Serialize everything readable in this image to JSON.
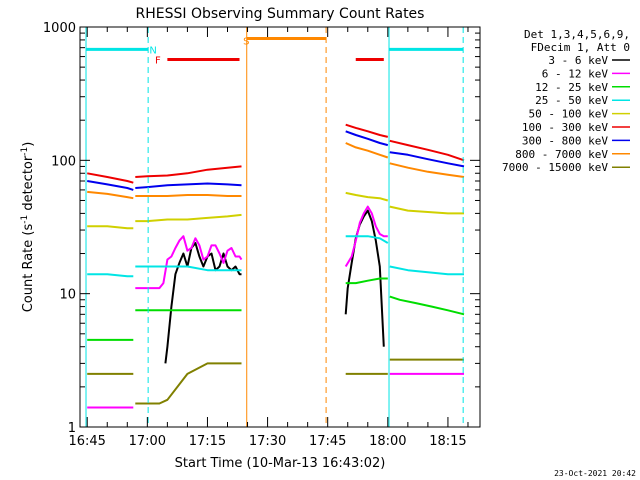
{
  "chart_data": {
    "type": "line",
    "title": "RHESSI Observing Summary Count Rates",
    "xlabel": "Start Time (10-Mar-13 16:43:02)",
    "ylabel_parts": [
      "Count Rate (s",
      "-1",
      " detector",
      "-1",
      ")"
    ],
    "y_scale": "log",
    "ylim": [
      1,
      1000
    ],
    "xlim_min": [
      0,
      96
    ],
    "x_ticks": [
      {
        "t": 0,
        "label": "16:45"
      },
      {
        "t": 15,
        "label": "17:00"
      },
      {
        "t": 30,
        "label": "17:15"
      },
      {
        "t": 45,
        "label": "17:30"
      },
      {
        "t": 60,
        "label": "17:45"
      },
      {
        "t": 75,
        "label": "18:00"
      },
      {
        "t": 90,
        "label": "18:15"
      }
    ],
    "y_ticks": [
      {
        "v": 1,
        "label": "1"
      },
      {
        "v": 10,
        "label": "10"
      },
      {
        "v": 100,
        "label": "100"
      },
      {
        "v": 1000,
        "label": "1000"
      }
    ],
    "legend_placement": "right",
    "legend_header": [
      "Det 1,3,4,5,6,9,",
      "FDecim 1, Att 0"
    ],
    "series": [
      {
        "name": "3 - 6 keV",
        "color": "#000000",
        "segments": [
          {
            "t": [
              19.5,
              20,
              21,
              22,
              23,
              24,
              25,
              26,
              27,
              28,
              29,
              30,
              31,
              32,
              33,
              34,
              35,
              36,
              37,
              38,
              38.5
            ],
            "v": [
              3,
              4,
              8,
              14,
              17,
              20,
              16,
              22,
              24,
              19,
              16,
              19,
              20,
              15,
              16,
              20,
              16,
              15,
              16,
              14,
              14
            ]
          },
          {
            "t": [
              64.5,
              65,
              66,
              67,
              68,
              69,
              70,
              71,
              72,
              73,
              74
            ],
            "v": [
              7,
              11,
              17,
              26,
              33,
              38,
              42,
              35,
              25,
              16,
              4
            ]
          }
        ]
      },
      {
        "name": "6 - 12 keV",
        "color": "#ff00ff",
        "segments": [
          {
            "t": [
              0,
              5,
              10,
              11.5
            ],
            "v": [
              1.4,
              1.4,
              1.4,
              1.4
            ]
          },
          {
            "t": [
              12,
              15,
              17,
              18,
              19,
              20,
              21,
              22,
              23,
              24,
              25,
              26,
              27,
              28,
              29,
              30,
              31,
              32,
              33,
              34,
              35,
              36,
              37,
              38,
              38.5
            ],
            "v": [
              11,
              11,
              11,
              11,
              12,
              18,
              19,
              22,
              25,
              27,
              21,
              22,
              26,
              23,
              18,
              19,
              23,
              23,
              20,
              17,
              21,
              22,
              19,
              19,
              18
            ]
          },
          {
            "t": [
              64.5,
              66,
              67,
              68,
              69,
              70,
              71,
              72,
              73,
              74,
              75
            ],
            "v": [
              16,
              19,
              25,
              34,
              40,
              45,
              40,
              32,
              28,
              27,
              27
            ]
          },
          {
            "t": [
              75.5,
              80,
              85,
              90,
              94
            ],
            "v": [
              2.5,
              2.5,
              2.5,
              2.5,
              2.5
            ]
          }
        ]
      },
      {
        "name": "12 - 25 keV",
        "color": "#00dd00",
        "segments": [
          {
            "t": [
              0,
              5,
              10,
              11.5
            ],
            "v": [
              4.5,
              4.5,
              4.5,
              4.5
            ]
          },
          {
            "t": [
              12,
              15,
              18,
              25,
              30,
              35,
              38.5
            ],
            "v": [
              7.5,
              7.5,
              7.5,
              7.5,
              7.5,
              7.5,
              7.5
            ]
          },
          {
            "t": [
              64.5,
              67,
              70,
              73,
              75
            ],
            "v": [
              12,
              12,
              12.5,
              13,
              13
            ]
          },
          {
            "t": [
              75.5,
              78,
              82,
              86,
              90,
              94
            ],
            "v": [
              9.5,
              9,
              8.5,
              8,
              7.5,
              7
            ]
          }
        ]
      },
      {
        "name": "25 - 50 keV",
        "color": "#00e5e5",
        "segments": [
          {
            "t": [
              0,
              5,
              10,
              11.5
            ],
            "v": [
              14,
              14,
              13.5,
              13.5
            ]
          },
          {
            "t": [
              12,
              15,
              18,
              25,
              30,
              35,
              38.5
            ],
            "v": [
              16,
              16,
              16,
              16,
              15,
              15,
              15
            ]
          },
          {
            "t": [
              64.5,
              67,
              70,
              73,
              75
            ],
            "v": [
              27,
              27,
              27,
              26,
              24
            ]
          },
          {
            "t": [
              75.5,
              80,
              85,
              90,
              94
            ],
            "v": [
              16,
              15,
              14.5,
              14,
              14
            ]
          }
        ]
      },
      {
        "name": "50 - 100 keV",
        "color": "#d0d000",
        "segments": [
          {
            "t": [
              0,
              5,
              10,
              11.5
            ],
            "v": [
              32,
              32,
              31,
              31
            ]
          },
          {
            "t": [
              12,
              15,
              20,
              25,
              30,
              35,
              38.5
            ],
            "v": [
              35,
              35,
              36,
              36,
              37,
              38,
              39
            ]
          },
          {
            "t": [
              64.5,
              67,
              70,
              73,
              75
            ],
            "v": [
              57,
              55,
              53,
              52,
              50
            ]
          },
          {
            "t": [
              75.5,
              80,
              85,
              90,
              94
            ],
            "v": [
              45,
              42,
              41,
              40,
              40
            ]
          }
        ]
      },
      {
        "name": "100 - 300 keV",
        "color": "#ee0000",
        "segments": [
          {
            "t": [
              0,
              5,
              10,
              11.5
            ],
            "v": [
              80,
              75,
              70,
              68
            ]
          },
          {
            "t": [
              12,
              15,
              20,
              25,
              30,
              35,
              38.5
            ],
            "v": [
              75,
              76,
              77,
              80,
              85,
              88,
              90
            ]
          },
          {
            "t": [
              64.5,
              67,
              70,
              73,
              75
            ],
            "v": [
              185,
              175,
              165,
              155,
              150
            ]
          },
          {
            "t": [
              75.5,
              80,
              85,
              90,
              94
            ],
            "v": [
              140,
              130,
              120,
              110,
              100
            ]
          }
        ]
      },
      {
        "name": "300 - 800 keV",
        "color": "#0000ee",
        "segments": [
          {
            "t": [
              0,
              5,
              10,
              11.5
            ],
            "v": [
              70,
              66,
              62,
              60
            ]
          },
          {
            "t": [
              12,
              15,
              20,
              25,
              30,
              35,
              38.5
            ],
            "v": [
              62,
              63,
              65,
              66,
              67,
              66,
              65
            ]
          },
          {
            "t": [
              64.5,
              67,
              70,
              73,
              75
            ],
            "v": [
              165,
              155,
              145,
              135,
              130
            ]
          },
          {
            "t": [
              75.5,
              80,
              85,
              90,
              94
            ],
            "v": [
              115,
              110,
              102,
              95,
              90
            ]
          }
        ]
      },
      {
        "name": "800 - 7000 keV",
        "color": "#ff8800",
        "segments": [
          {
            "t": [
              0,
              5,
              10,
              11.5
            ],
            "v": [
              58,
              56,
              53,
              52
            ]
          },
          {
            "t": [
              12,
              15,
              20,
              25,
              30,
              35,
              38.5
            ],
            "v": [
              54,
              54,
              54,
              55,
              55,
              54,
              54
            ]
          },
          {
            "t": [
              64.5,
              67,
              70,
              73,
              75
            ],
            "v": [
              135,
              125,
              118,
              110,
              105
            ]
          },
          {
            "t": [
              75.5,
              80,
              85,
              90,
              94
            ],
            "v": [
              95,
              88,
              82,
              78,
              75
            ]
          }
        ]
      },
      {
        "name": "7000 - 15000 keV",
        "color": "#808000",
        "segments": [
          {
            "t": [
              0,
              5,
              10,
              11.5
            ],
            "v": [
              2.5,
              2.5,
              2.5,
              2.5
            ]
          },
          {
            "t": [
              12,
              15,
              18,
              20,
              25,
              30,
              35,
              38.5
            ],
            "v": [
              1.5,
              1.5,
              1.5,
              1.6,
              2.5,
              3,
              3,
              3
            ]
          },
          {
            "t": [
              64.5,
              67,
              70,
              73,
              75
            ],
            "v": [
              2.5,
              2.5,
              2.5,
              2.5,
              2.5
            ]
          },
          {
            "t": [
              75.5,
              80,
              85,
              90,
              94
            ],
            "v": [
              3.2,
              3.2,
              3.2,
              3.2,
              3.2
            ]
          }
        ]
      }
    ],
    "annotations": {
      "vertical_lines": [
        {
          "t": -0.3,
          "color": "#00e5e5",
          "dashed": false
        },
        {
          "t": 15.2,
          "color": "#00e5e5",
          "dashed": true
        },
        {
          "t": 39.8,
          "color": "#ff8800",
          "dashed": false
        },
        {
          "t": 59.6,
          "color": "#ff8800",
          "dashed": true
        },
        {
          "t": 75.3,
          "color": "#00e5e5",
          "dashed": false
        },
        {
          "t": 93.8,
          "color": "#00e5e5",
          "dashed": true
        }
      ],
      "bars": [
        {
          "t0": -0.3,
          "t1": 15.2,
          "v": 680,
          "color": "#00e5e5"
        },
        {
          "t0": 75.3,
          "t1": 93.8,
          "v": 680,
          "color": "#00e5e5"
        },
        {
          "t0": 39.8,
          "t1": 59.6,
          "v": 820,
          "color": "#ff8800"
        },
        {
          "t0": 20,
          "t1": 38,
          "v": 570,
          "color": "#ee0000"
        },
        {
          "t0": 67,
          "t1": 74,
          "v": 570,
          "color": "#ee0000"
        }
      ],
      "letters": [
        {
          "text": "N",
          "t": 15.5,
          "v": 680,
          "color": "#00e5e5"
        },
        {
          "text": "F",
          "t": 16.9,
          "v": 570,
          "color": "#ee0000"
        },
        {
          "text": "S",
          "t": 38.9,
          "v": 790,
          "color": "#ff8800"
        }
      ]
    }
  },
  "footer_date": "23-Oct-2021 20:42"
}
